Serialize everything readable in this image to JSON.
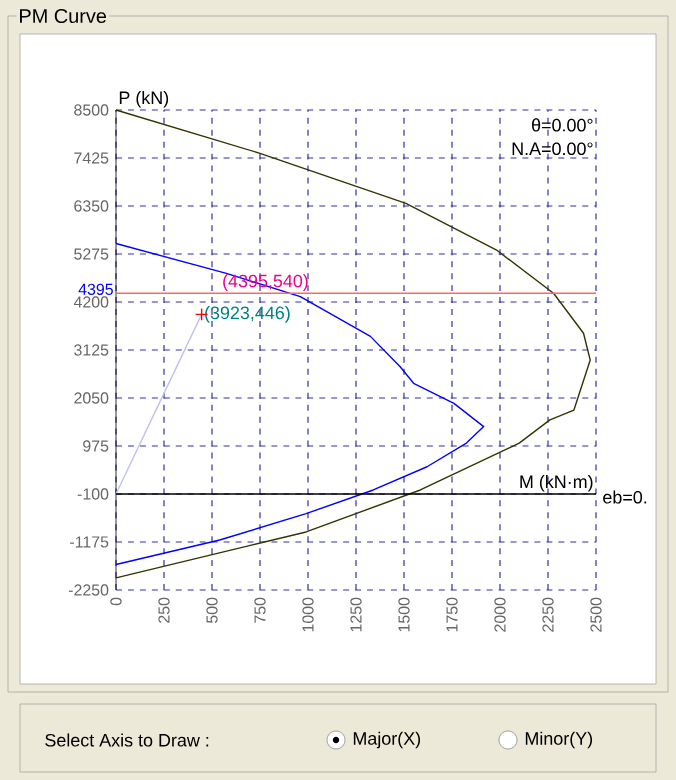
{
  "chart_data": {
    "type": "line",
    "title": "PM Curve",
    "xlabel": "M (kN·m)",
    "ylabel": "P (kN)",
    "xlim": [
      0,
      2500
    ],
    "xticks": [
      0,
      250,
      500,
      750,
      1000,
      1250,
      1500,
      1750,
      2000,
      2250,
      2500
    ],
    "ylim": [
      -2250,
      8500
    ],
    "yticks": [
      -2250,
      -1175,
      -100,
      975,
      2050,
      3125,
      4200,
      5275,
      6350,
      7425,
      8500
    ],
    "grid": true,
    "marker": "none",
    "line_style": "solid",
    "series": [
      {
        "color": "#333300",
        "x": [
          0,
          750,
          1510,
          1980,
          2280,
          2435,
          2470,
          2385,
          2260,
          2100,
          1585,
          990,
          700,
          0
        ],
        "values": [
          8500,
          7530,
          6410,
          5370,
          4390,
          3500,
          2900,
          1780,
          1560,
          1040,
          -10,
          -950,
          -1250,
          -1980
        ]
      },
      {
        "color": "#0000ff",
        "x": [
          0,
          575,
          960,
          1325,
          1480,
          1550,
          1760,
          1915,
          1825,
          1620,
          1340,
          990,
          540,
          0
        ],
        "values": [
          5510,
          4840,
          4320,
          3430,
          2750,
          2380,
          1930,
          1410,
          1040,
          510,
          -10,
          -540,
          -1130,
          -1680
        ]
      },
      {
        "color": "#c0c0f0",
        "x": [
          0,
          446
        ],
        "values": [
          -100,
          3923
        ]
      },
      {
        "type": "scatter",
        "marker": "cross",
        "color": "#ff0000",
        "x": [
          446
        ],
        "values": [
          3923
        ]
      }
    ],
    "ref_lines": [
      {
        "axis": "y",
        "value": -100,
        "color": "#000000"
      },
      {
        "axis": "y",
        "value": 4395,
        "label": "4395",
        "color": "#ff6666"
      }
    ],
    "annotations": [
      {
        "text": "(4395,540)",
        "x": 540,
        "y": 4395
      },
      {
        "text": "(3923,446)",
        "x": 446,
        "y": 3923
      },
      "θ=0.00°",
      "N.A=0.00°",
      "eb=0.",
      "Select Axis to Draw :",
      "Major(X)",
      "Minor(Y)"
    ]
  }
}
